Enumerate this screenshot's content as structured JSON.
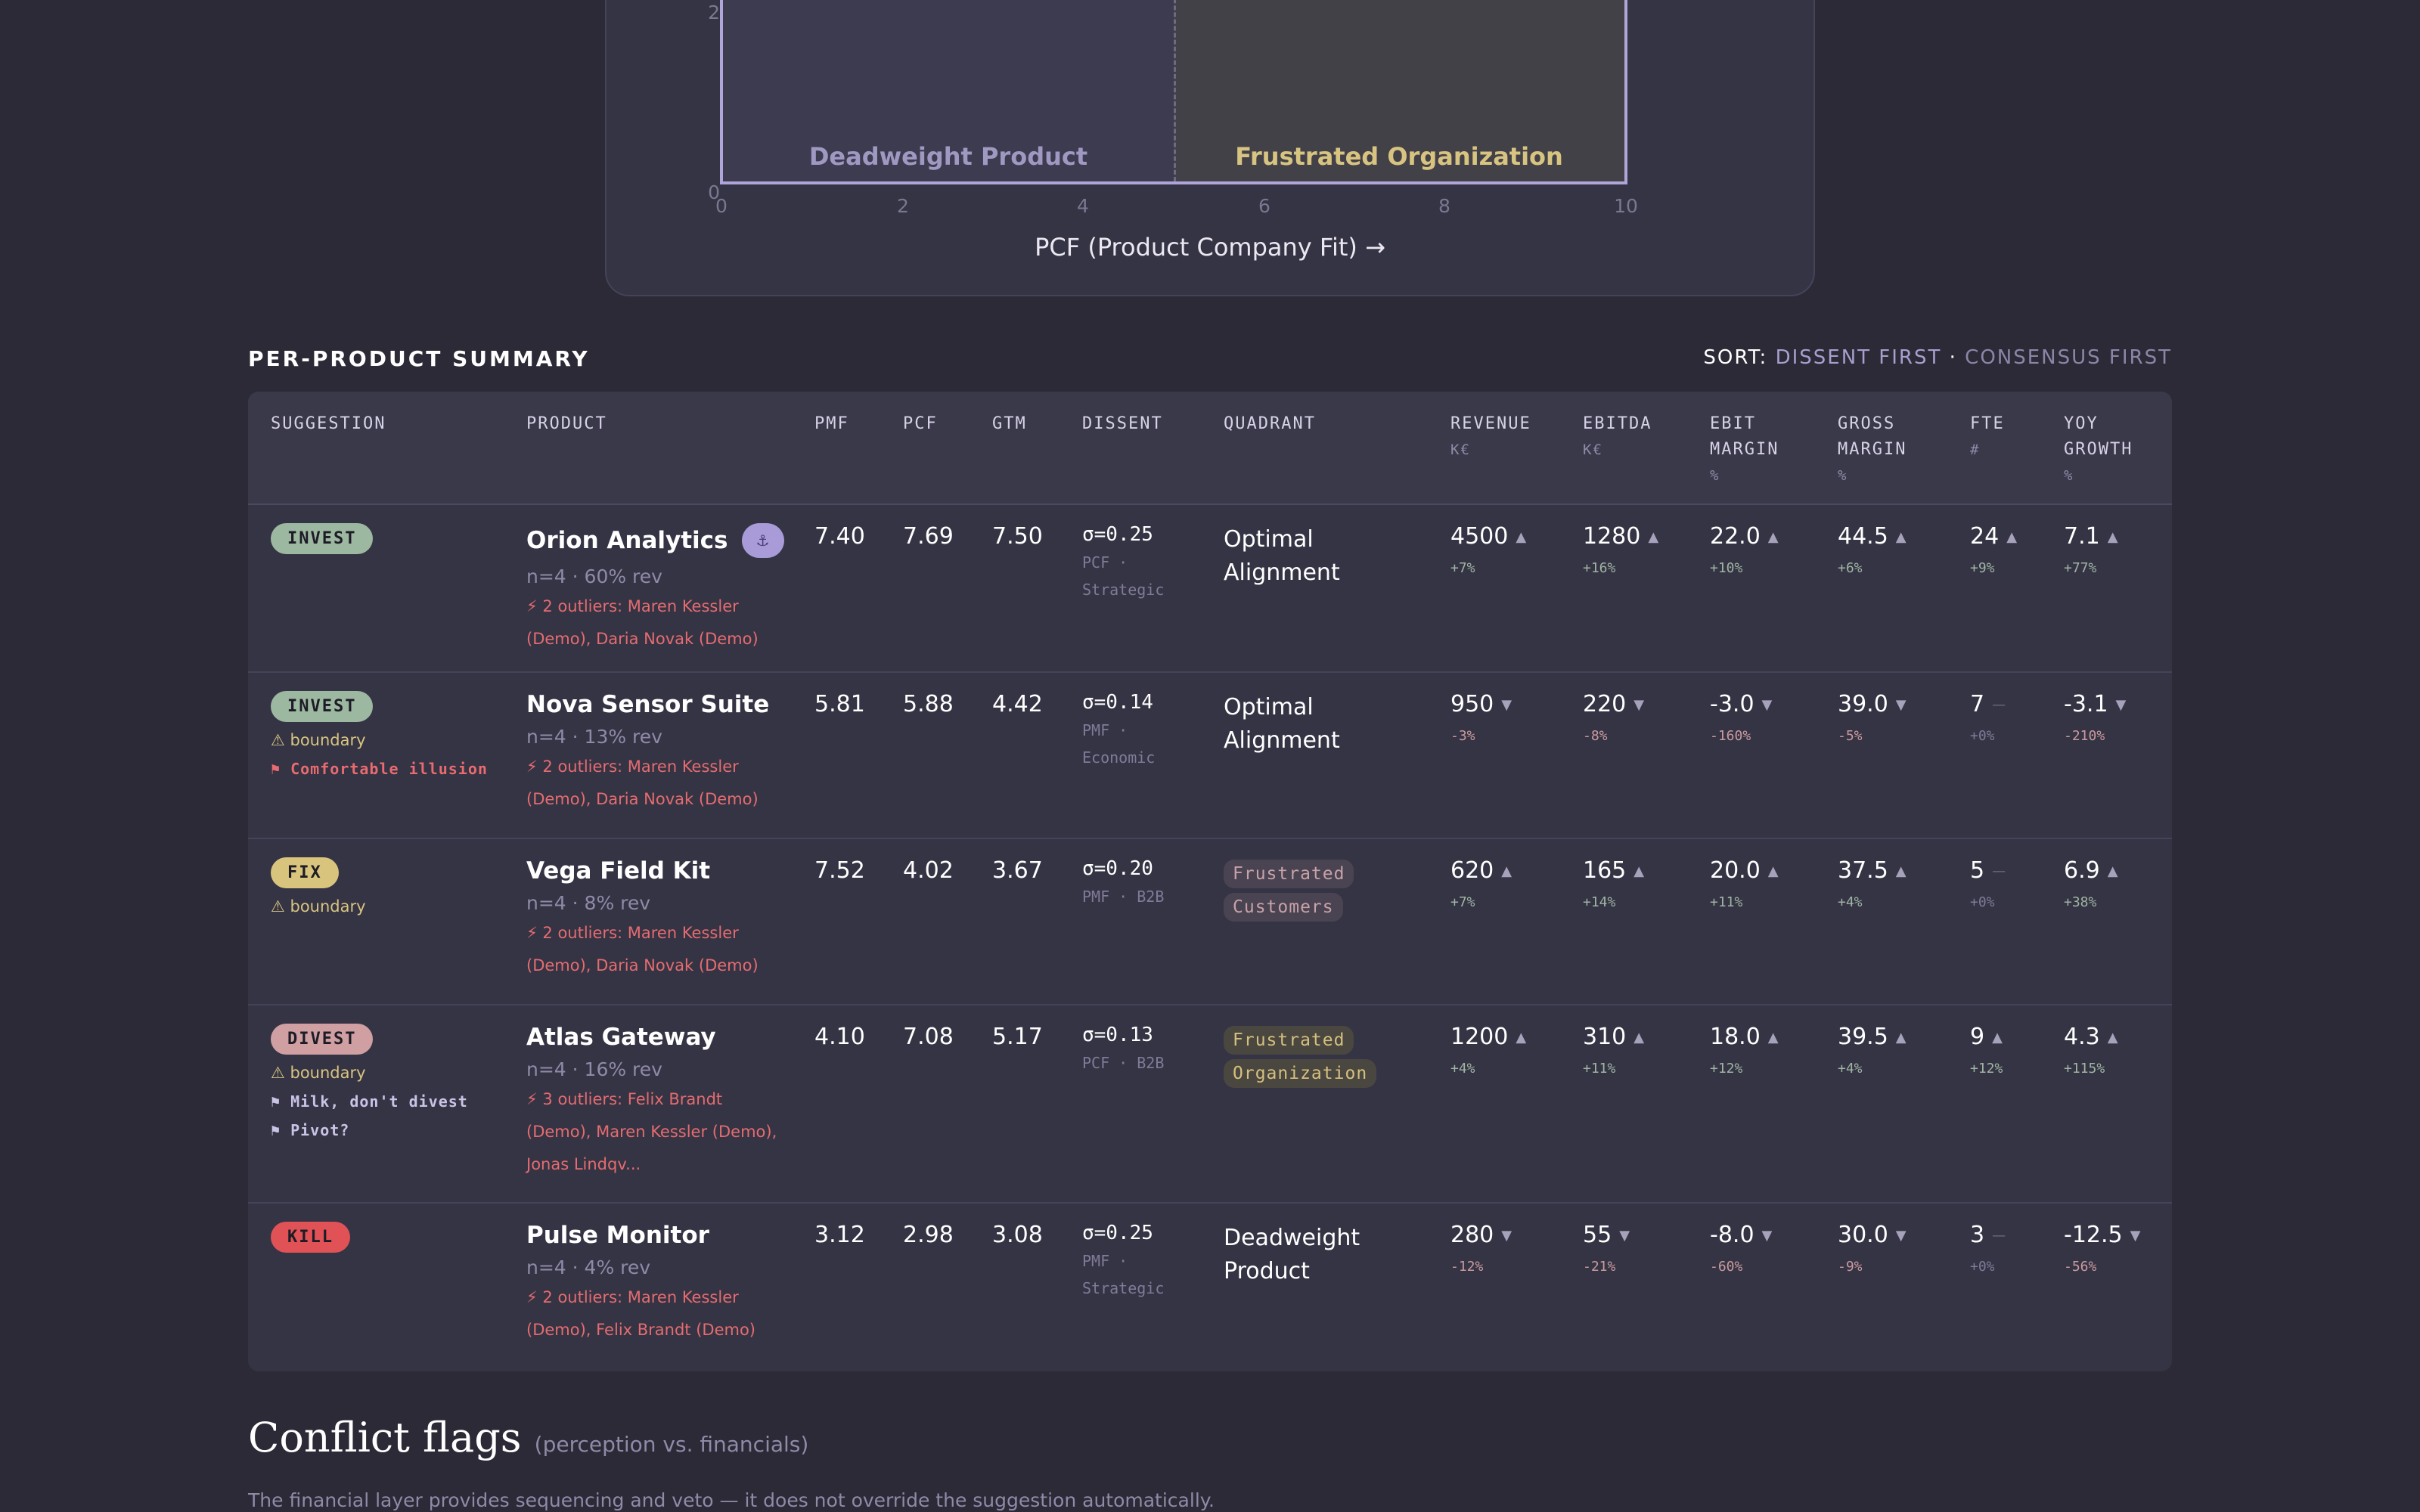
{
  "chart": {
    "y_ticks": [
      "2",
      "0"
    ],
    "x_ticks": [
      "0",
      "2",
      "4",
      "6",
      "8",
      "10"
    ],
    "x_label": "PCF (Product Company Fit) →",
    "quadrant_left": "Deadweight Product",
    "quadrant_right": "Frustrated Organization"
  },
  "summary": {
    "title": "PER-PRODUCT SUMMARY",
    "sort_label": "SORT:",
    "sort_dissent": "DISSENT FIRST",
    "sort_sep": "·",
    "sort_consensus": "CONSENSUS FIRST"
  },
  "table": {
    "headers": {
      "suggestion": "SUGGESTION",
      "product": "PRODUCT",
      "pmf": "PMF",
      "pcf": "PCF",
      "gtm": "GTM",
      "dissent": "DISSENT",
      "quadrant": "QUADRANT",
      "revenue": "REVENUE",
      "revenue_unit": "K€",
      "ebitda": "EBITDA",
      "ebitda_unit": "K€",
      "ebit_margin_1": "EBIT",
      "ebit_margin_2": "MARGIN",
      "ebit_margin_unit": "%",
      "gross_margin_1": "GROSS",
      "gross_margin_2": "MARGIN",
      "gross_margin_unit": "%",
      "fte": "FTE",
      "fte_unit": "#",
      "yoy_1": "YOY",
      "yoy_2": "GROWTH",
      "yoy_unit": "%"
    },
    "rows": [
      {
        "suggestion": "INVEST",
        "boundary": "",
        "flags": [],
        "product": "Orion Analytics",
        "anchor_icon": "⚓",
        "meta": "n=4 · 60% rev",
        "outliers": "⚡ 2 outliers: Maren Kessler (Demo), Daria Novak (Demo)",
        "pmf": "7.40",
        "pcf": "7.69",
        "gtm": "7.50",
        "dissent": "σ=0.25",
        "dissent_sub": "PCF · Strategic",
        "quadrant": "Optimal Alignment",
        "revenue": "4500",
        "revenue_d": "+7%",
        "revenue_t": "▲",
        "ebitda": "1280",
        "ebitda_d": "+16%",
        "ebitda_t": "▲",
        "ebit": "22.0",
        "ebit_d": "+10%",
        "ebit_t": "▲",
        "gross": "44.5",
        "gross_d": "+6%",
        "gross_t": "▲",
        "fte": "24",
        "fte_d": "+9%",
        "fte_t": "▲",
        "yoy": "7.1",
        "yoy_d": "+77%",
        "yoy_t": "▲"
      },
      {
        "suggestion": "INVEST",
        "boundary": "⚠ boundary",
        "flags": [
          "⚑ Comfortable illusion"
        ],
        "product": "Nova Sensor Suite",
        "meta": "n=4 · 13% rev",
        "outliers": "⚡ 2 outliers: Maren Kessler (Demo), Daria Novak (Demo)",
        "pmf": "5.81",
        "pcf": "5.88",
        "gtm": "4.42",
        "dissent": "σ=0.14",
        "dissent_sub": "PMF · Economic",
        "quadrant": "Optimal Alignment",
        "revenue": "950",
        "revenue_d": "-3%",
        "revenue_t": "▼",
        "ebitda": "220",
        "ebitda_d": "-8%",
        "ebitda_t": "▼",
        "ebit": "-3.0",
        "ebit_d": "-160%",
        "ebit_t": "▼",
        "gross": "39.0",
        "gross_d": "-5%",
        "gross_t": "▼",
        "fte": "7",
        "fte_d": "+0%",
        "fte_t": "—",
        "yoy": "-3.1",
        "yoy_d": "-210%",
        "yoy_t": "▼"
      },
      {
        "suggestion": "FIX",
        "boundary": "⚠ boundary",
        "flags": [],
        "product": "Vega Field Kit",
        "meta": "n=4 · 8% rev",
        "outliers": "⚡ 2 outliers: Maren Kessler (Demo), Daria Novak (Demo)",
        "pmf": "7.52",
        "pcf": "4.02",
        "gtm": "3.67",
        "dissent": "σ=0.20",
        "dissent_sub": "PMF · B2B",
        "quadrant": "Frustrated Customers",
        "revenue": "620",
        "revenue_d": "+7%",
        "revenue_t": "▲",
        "ebitda": "165",
        "ebitda_d": "+14%",
        "ebitda_t": "▲",
        "ebit": "20.0",
        "ebit_d": "+11%",
        "ebit_t": "▲",
        "gross": "37.5",
        "gross_d": "+4%",
        "gross_t": "▲",
        "fte": "5",
        "fte_d": "+0%",
        "fte_t": "—",
        "yoy": "6.9",
        "yoy_d": "+38%",
        "yoy_t": "▲"
      },
      {
        "suggestion": "DIVEST",
        "boundary": "⚠ boundary",
        "flags": [
          "⚑ Milk, don't divest",
          "⚑ Pivot?"
        ],
        "product": "Atlas Gateway",
        "meta": "n=4 · 16% rev",
        "outliers": "⚡ 3 outliers: Felix Brandt (Demo), Maren Kessler (Demo), Jonas Lindqv...",
        "pmf": "4.10",
        "pcf": "7.08",
        "gtm": "5.17",
        "dissent": "σ=0.13",
        "dissent_sub": "PCF · B2B",
        "quadrant": "Frustrated Organization",
        "revenue": "1200",
        "revenue_d": "+4%",
        "revenue_t": "▲",
        "ebitda": "310",
        "ebitda_d": "+11%",
        "ebitda_t": "▲",
        "ebit": "18.0",
        "ebit_d": "+12%",
        "ebit_t": "▲",
        "gross": "39.5",
        "gross_d": "+4%",
        "gross_t": "▲",
        "fte": "9",
        "fte_d": "+12%",
        "fte_t": "▲",
        "yoy": "4.3",
        "yoy_d": "+115%",
        "yoy_t": "▲"
      },
      {
        "suggestion": "KILL",
        "boundary": "",
        "flags": [],
        "product": "Pulse Monitor",
        "meta": "n=4 · 4% rev",
        "outliers": "⚡ 2 outliers: Maren Kessler (Demo), Felix Brandt (Demo)",
        "pmf": "3.12",
        "pcf": "2.98",
        "gtm": "3.08",
        "dissent": "σ=0.25",
        "dissent_sub": "PMF · Strategic",
        "quadrant": "Deadweight Product",
        "revenue": "280",
        "revenue_d": "-12%",
        "revenue_t": "▼",
        "ebitda": "55",
        "ebitda_d": "-21%",
        "ebitda_t": "▼",
        "ebit": "-8.0",
        "ebit_d": "-60%",
        "ebit_t": "▼",
        "gross": "30.0",
        "gross_d": "-9%",
        "gross_t": "▼",
        "fte": "3",
        "fte_d": "+0%",
        "fte_t": "—",
        "yoy": "-12.5",
        "yoy_d": "-56%",
        "yoy_t": "▼"
      }
    ]
  },
  "conflict": {
    "title": "Conflict flags",
    "subtitle": "(perception vs. financials)",
    "description": "The financial layer provides sequencing and veto — it does not override the suggestion automatically."
  }
}
